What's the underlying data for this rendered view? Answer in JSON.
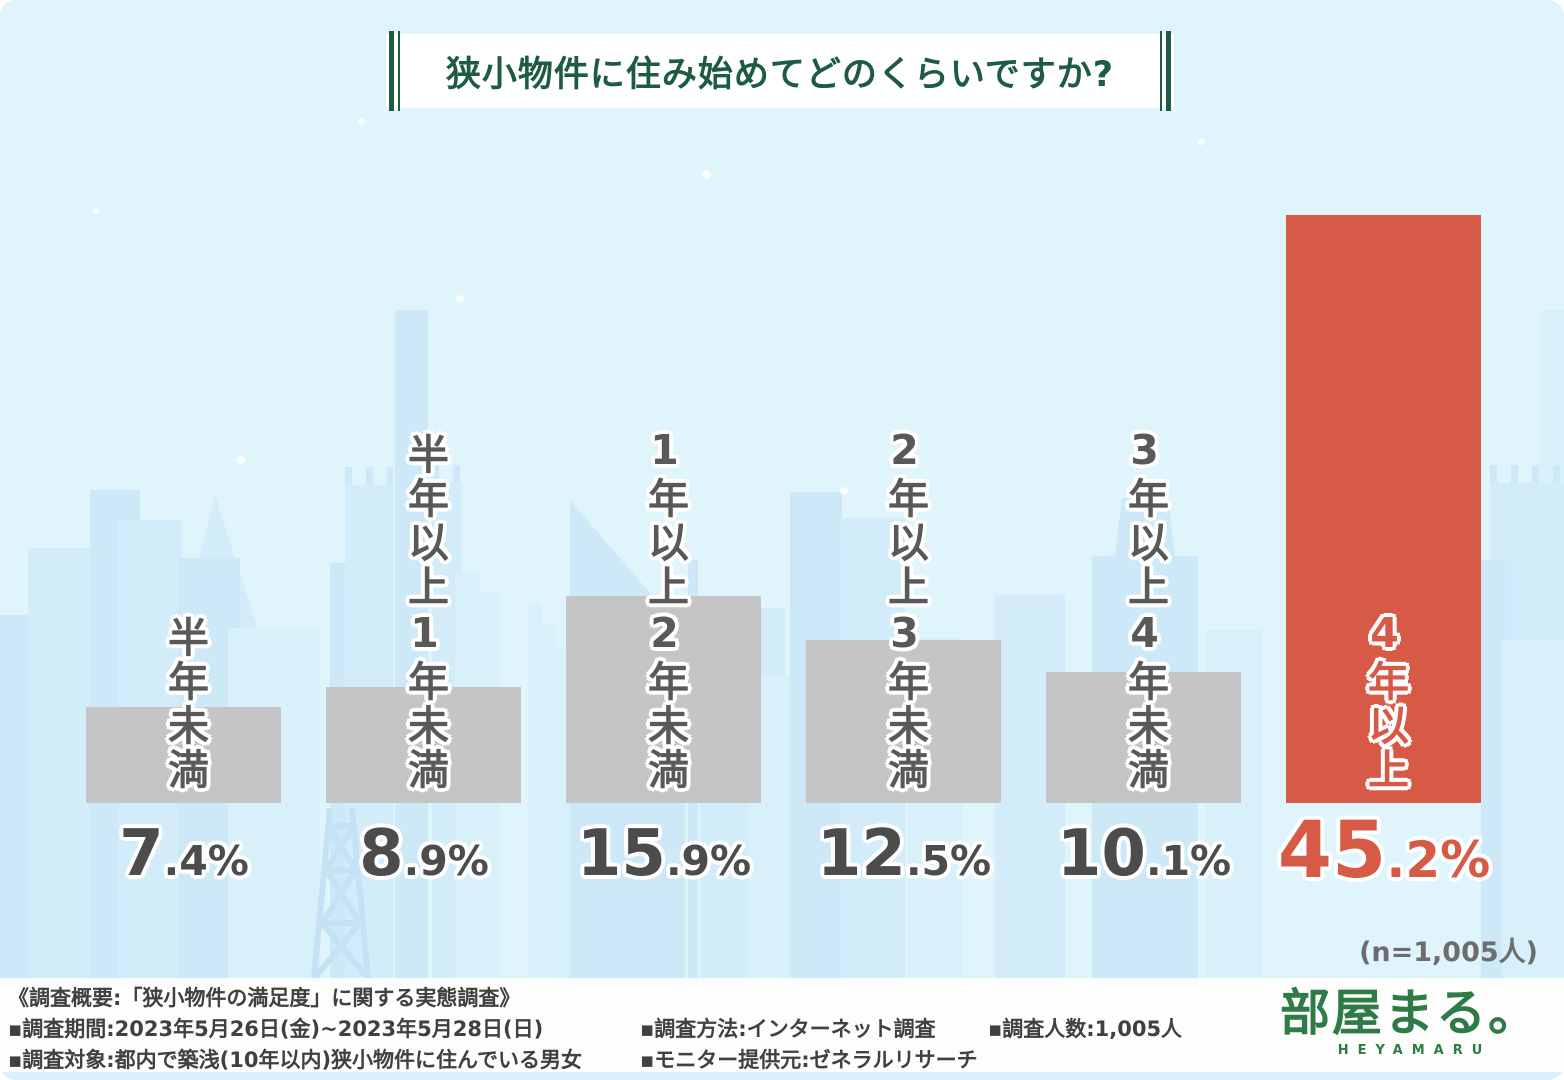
{
  "title": "狭小物件に住み始めてどのくらいですか?",
  "sample_note": "(n=1,005人)",
  "chart_data": {
    "type": "bar",
    "title": "狭小物件に住み始めてどのくらいですか?",
    "categories": [
      "半年未満",
      "半年以上1年未満",
      "1年以上2年未満",
      "2年以上3年未満",
      "3年以上4年未満",
      "4年以上"
    ],
    "values": [
      7.4,
      8.9,
      15.9,
      12.5,
      10.1,
      45.2
    ],
    "unit": "%",
    "value_labels": [
      "7.4%",
      "8.9%",
      "15.9%",
      "12.5%",
      "10.1%",
      "45.2%"
    ],
    "sample_size": "1,005",
    "highlight_index": 5,
    "bar_color": "#c5c5c5",
    "highlight_color": "#d65a45",
    "axis": "hidden",
    "grid": false,
    "legend": false
  },
  "bars": [
    {
      "label": "半年未満",
      "value_main": "7",
      "value_sub": ".4%"
    },
    {
      "label": "半年以上1年未満",
      "value_main": "8",
      "value_sub": ".9%"
    },
    {
      "label": "1年以上2年未満",
      "value_main": "15",
      "value_sub": ".9%"
    },
    {
      "label": "2年以上3年未満",
      "value_main": "12",
      "value_sub": ".5%"
    },
    {
      "label": "3年以上4年未満",
      "value_main": "10",
      "value_sub": ".1%"
    },
    {
      "label": "4年以上",
      "value_main": "45",
      "value_sub": ".2%"
    }
  ],
  "footer": {
    "line1": "《調査概要:「狭小物件の満足度」に関する実態調査》",
    "line2": "▪調査期間:2023年5月26日(金)~2023年5月28日(日)",
    "line3": "▪調査対象:都内で築浅(10年以内)狭小物件に住んでいる男女",
    "method": "▪調査方法:インターネット調査",
    "monitor": "▪モニター提供元:ゼネラルリサーチ",
    "people": "▪調査人数:1,005人"
  },
  "logo": {
    "wordmark": "部屋まる。",
    "romaji": "HEYAMARU",
    "color": "#2e7b45"
  },
  "colors": {
    "background": "#dff4fb",
    "skyline": "#cde9f7",
    "title_green": "#1d5c40",
    "bar_gray": "#c5c5c5",
    "bar_red": "#d65a45",
    "text_gray": "#4c4c4c"
  }
}
